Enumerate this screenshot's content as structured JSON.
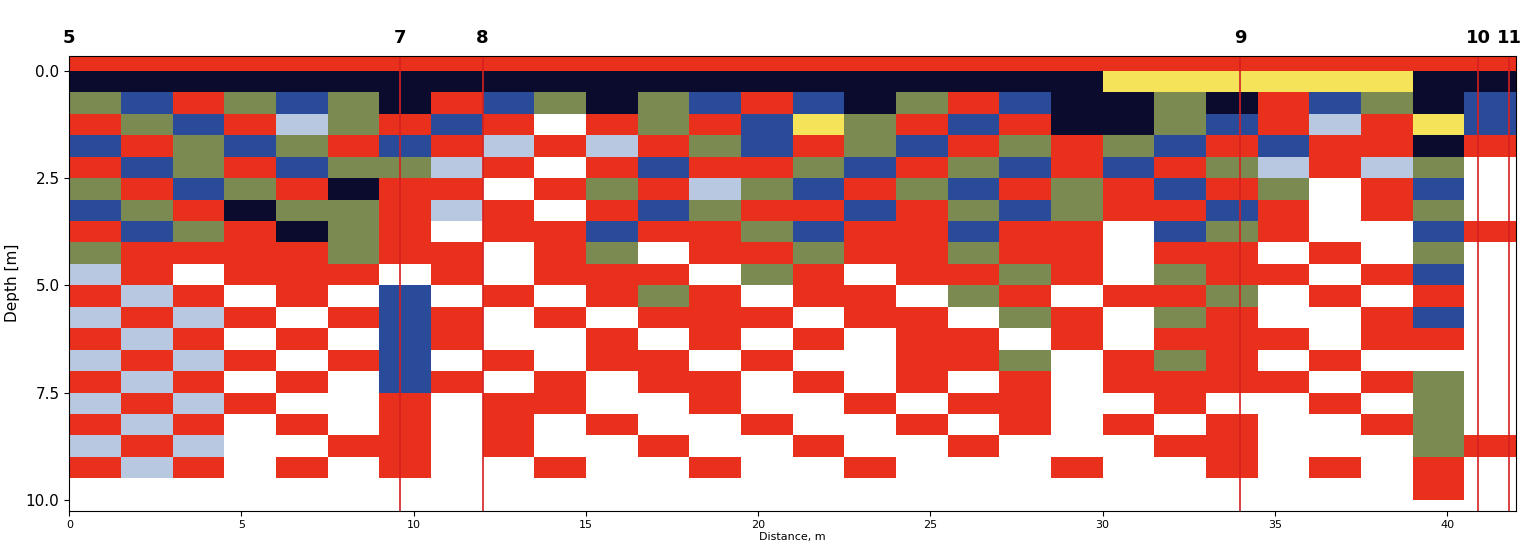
{
  "chart_data": {
    "type": "heatmap",
    "xlabel": "Distance, m",
    "ylabel": "Depth [m]",
    "xlim": [
      0,
      42
    ],
    "ylim": [
      10.25,
      -0.35
    ],
    "xticks": [
      0,
      5,
      10,
      15,
      20,
      25,
      30,
      35,
      40
    ],
    "yticks": [
      {
        "value": 0,
        "label": "0.0"
      },
      2.5,
      {
        "value": 5,
        "label": "5.0"
      },
      7.5,
      {
        "value": 10,
        "label": "10.0"
      }
    ],
    "x_edges": [
      0,
      1.5,
      3,
      4.5,
      6,
      7.5,
      9,
      10.5,
      12,
      13.5,
      15,
      16.5,
      18,
      19.5,
      21,
      22.5,
      24,
      25.5,
      27,
      28.5,
      30,
      31.5,
      33,
      34.5,
      36,
      37.5,
      39,
      40.5,
      42
    ],
    "y_edges": [
      -0.5,
      0,
      0.5,
      1,
      1.5,
      2,
      2.5,
      3,
      3.5,
      4,
      4.5,
      5,
      5.5,
      6,
      6.5,
      7,
      7.5,
      8,
      8.5,
      9,
      9.5,
      10,
      10.5
    ],
    "colors": [
      "#0b0b2e",
      "#2a4a9a",
      "#b8c8e0",
      "#ffffff",
      "#e8301c",
      "#7a8a50",
      "#f5e35a"
    ],
    "clim": [
      -3.5,
      3.5
    ],
    "cells": [
      [
        1,
        1,
        1,
        1,
        1,
        1,
        1,
        1,
        1,
        1,
        1,
        1,
        1,
        1,
        1,
        1,
        1,
        1,
        1,
        1,
        1,
        1,
        1,
        1,
        1,
        1,
        1,
        1
      ],
      [
        -3,
        -3,
        -3,
        -3,
        -3,
        -3,
        -3,
        -3,
        -3,
        -3,
        -3,
        -3,
        -3,
        -3,
        -3,
        -3,
        -3,
        -3,
        -3,
        -3,
        3,
        3,
        3,
        3,
        3,
        3,
        -3,
        -3
      ],
      [
        2,
        -2,
        1,
        2,
        -2,
        2,
        -3,
        1,
        -2,
        2,
        -3,
        2,
        -2,
        1,
        -2,
        -3,
        2,
        1,
        -2,
        -3,
        -3,
        2,
        -3,
        1,
        -2,
        2,
        -3,
        -2
      ],
      [
        1,
        2,
        -2,
        1,
        -1,
        2,
        1,
        -2,
        1,
        0,
        1,
        2,
        1,
        -2,
        3,
        2,
        1,
        -2,
        1,
        -3,
        -3,
        2,
        -2,
        1,
        -1,
        1,
        3,
        -2
      ],
      [
        -2,
        1,
        2,
        -2,
        2,
        1,
        -2,
        1,
        -1,
        1,
        -1,
        1,
        2,
        -2,
        1,
        2,
        -2,
        1,
        2,
        1,
        2,
        -2,
        1,
        -2,
        1,
        1,
        -3,
        1
      ],
      [
        1,
        -2,
        2,
        1,
        -2,
        2,
        2,
        -1,
        1,
        0,
        1,
        -2,
        1,
        1,
        2,
        -2,
        1,
        2,
        -2,
        1,
        -2,
        1,
        2,
        -1,
        1,
        -1,
        2,
        0
      ],
      [
        2,
        1,
        -2,
        2,
        1,
        -3,
        1,
        1,
        0,
        1,
        2,
        1,
        -1,
        2,
        -2,
        1,
        2,
        -2,
        1,
        2,
        1,
        -2,
        1,
        2,
        0,
        1,
        -2,
        0
      ],
      [
        -2,
        2,
        1,
        -3,
        2,
        2,
        1,
        -1,
        1,
        0,
        1,
        -2,
        2,
        1,
        1,
        -2,
        1,
        2,
        -2,
        2,
        1,
        1,
        -2,
        1,
        0,
        1,
        2,
        0
      ],
      [
        1,
        -2,
        2,
        1,
        -3,
        2,
        1,
        0,
        1,
        1,
        -2,
        1,
        1,
        2,
        -2,
        1,
        1,
        -2,
        1,
        1,
        0,
        -2,
        2,
        1,
        0,
        0,
        -2,
        1
      ],
      [
        2,
        1,
        1,
        1,
        1,
        2,
        1,
        1,
        0,
        1,
        2,
        0,
        1,
        1,
        2,
        1,
        1,
        2,
        1,
        1,
        0,
        1,
        1,
        0,
        1,
        0,
        2,
        0
      ],
      [
        -1,
        1,
        0,
        1,
        1,
        1,
        0,
        1,
        0,
        1,
        1,
        1,
        0,
        2,
        1,
        0,
        1,
        1,
        2,
        1,
        0,
        2,
        1,
        1,
        0,
        1,
        -2,
        0
      ],
      [
        1,
        -1,
        1,
        0,
        1,
        0,
        -2,
        0,
        1,
        0,
        1,
        2,
        1,
        0,
        1,
        1,
        0,
        2,
        1,
        0,
        1,
        1,
        2,
        0,
        1,
        0,
        1,
        0
      ],
      [
        -1,
        1,
        -1,
        1,
        0,
        1,
        -2,
        1,
        0,
        1,
        0,
        1,
        1,
        1,
        0,
        1,
        1,
        0,
        2,
        1,
        0,
        2,
        1,
        0,
        0,
        1,
        -2,
        0
      ],
      [
        1,
        -1,
        1,
        0,
        1,
        0,
        -2,
        1,
        0,
        0,
        1,
        0,
        1,
        0,
        1,
        0,
        1,
        1,
        0,
        1,
        0,
        1,
        1,
        1,
        0,
        1,
        1,
        0
      ],
      [
        -1,
        1,
        -1,
        1,
        0,
        1,
        -2,
        0,
        1,
        0,
        1,
        1,
        0,
        1,
        0,
        0,
        1,
        1,
        2,
        0,
        1,
        2,
        1,
        0,
        1,
        0,
        0,
        0
      ],
      [
        1,
        -1,
        1,
        0,
        1,
        0,
        -2,
        1,
        0,
        1,
        0,
        1,
        1,
        0,
        1,
        0,
        1,
        0,
        1,
        0,
        1,
        1,
        1,
        1,
        0,
        1,
        2,
        0
      ],
      [
        -1,
        1,
        -1,
        1,
        0,
        0,
        1,
        0,
        1,
        1,
        0,
        0,
        1,
        0,
        0,
        1,
        0,
        1,
        1,
        0,
        0,
        1,
        0,
        0,
        1,
        0,
        2,
        0
      ],
      [
        1,
        -1,
        1,
        0,
        1,
        0,
        1,
        0,
        1,
        0,
        1,
        0,
        0,
        1,
        0,
        0,
        1,
        0,
        1,
        0,
        1,
        0,
        1,
        0,
        0,
        1,
        2,
        0
      ],
      [
        -1,
        1,
        -1,
        0,
        0,
        1,
        1,
        0,
        1,
        0,
        0,
        1,
        0,
        0,
        1,
        0,
        0,
        1,
        0,
        0,
        0,
        1,
        1,
        0,
        0,
        0,
        2,
        1
      ],
      [
        1,
        -1,
        1,
        0,
        1,
        0,
        1,
        0,
        0,
        1,
        0,
        0,
        1,
        0,
        0,
        1,
        0,
        0,
        0,
        1,
        0,
        0,
        1,
        0,
        1,
        0,
        1,
        0
      ],
      [
        0,
        0,
        0,
        0,
        0,
        0,
        0,
        0,
        0,
        0,
        0,
        0,
        0,
        0,
        0,
        0,
        0,
        0,
        0,
        0,
        0,
        0,
        0,
        0,
        0,
        0,
        1,
        0
      ],
      [
        0,
        0,
        0,
        0,
        0,
        0,
        0,
        0,
        0,
        0,
        0,
        0,
        0,
        0,
        0,
        0,
        0,
        0,
        0,
        0,
        0,
        0,
        0,
        0,
        0,
        0,
        0,
        0
      ]
    ],
    "markers": [
      {
        "label": "5",
        "x": 0
      },
      {
        "label": "7",
        "x": 9.6
      },
      {
        "label": "8",
        "x": 12.0
      },
      {
        "label": "9",
        "x": 34.0
      },
      {
        "label": "10",
        "x": 40.9
      },
      {
        "label": "11",
        "x": 41.8
      }
    ],
    "marker_color": "#d62020"
  }
}
